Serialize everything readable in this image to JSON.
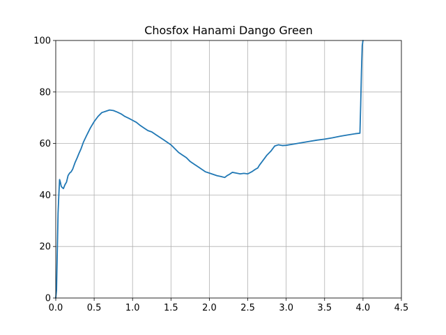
{
  "chart_data": {
    "type": "line",
    "title": "Chosfox Hanami Dango Green",
    "xlabel": "",
    "ylabel": "",
    "xlim": [
      0,
      4.5
    ],
    "ylim": [
      0,
      100
    ],
    "xticks": [
      0.0,
      0.5,
      1.0,
      1.5,
      2.0,
      2.5,
      3.0,
      3.5,
      4.0,
      4.5
    ],
    "xtick_labels": [
      "0.0",
      "0.5",
      "1.0",
      "1.5",
      "2.0",
      "2.5",
      "3.0",
      "3.5",
      "4.0",
      "4.5"
    ],
    "yticks": [
      0,
      20,
      40,
      60,
      80,
      100
    ],
    "ytick_labels": [
      "0",
      "20",
      "40",
      "60",
      "80",
      "100"
    ],
    "grid": true,
    "color": "#1f77b4",
    "series": [
      {
        "x": [
          0.0,
          0.01,
          0.02,
          0.03,
          0.04,
          0.05,
          0.06,
          0.07,
          0.08,
          0.1,
          0.12,
          0.14,
          0.16,
          0.18,
          0.2,
          0.22,
          0.25,
          0.28,
          0.3,
          0.33,
          0.36,
          0.4,
          0.45,
          0.5,
          0.55,
          0.6,
          0.65,
          0.7,
          0.75,
          0.8,
          0.85,
          0.9,
          0.95,
          1.0,
          1.05,
          1.1,
          1.15,
          1.2,
          1.25,
          1.3,
          1.35,
          1.4,
          1.45,
          1.5,
          1.55,
          1.6,
          1.65,
          1.7,
          1.75,
          1.8,
          1.85,
          1.9,
          1.95,
          2.0,
          2.05,
          2.1,
          2.15,
          2.2,
          2.23,
          2.26,
          2.3,
          2.35,
          2.4,
          2.45,
          2.5,
          2.55,
          2.6,
          2.63,
          2.65,
          2.7,
          2.75,
          2.8,
          2.85,
          2.9,
          2.95,
          3.0,
          3.1,
          3.2,
          3.3,
          3.4,
          3.5,
          3.6,
          3.7,
          3.8,
          3.9,
          3.96,
          3.97,
          3.98,
          3.99,
          4.0
        ],
        "y": [
          0,
          3,
          18,
          33,
          40,
          46,
          45,
          43.5,
          43,
          42.5,
          44,
          45,
          47.5,
          48.5,
          49,
          50,
          52.5,
          54.5,
          56,
          58,
          60.5,
          63,
          66,
          68.5,
          70.5,
          72,
          72.5,
          73,
          72.8,
          72.2,
          71.5,
          70.5,
          69.8,
          69,
          68.2,
          67,
          66,
          65,
          64.5,
          63.5,
          62.5,
          61.5,
          60.5,
          59.5,
          58,
          56.5,
          55.5,
          54.5,
          53,
          52,
          51,
          50,
          49,
          48.5,
          48,
          47.5,
          47.2,
          46.8,
          47.5,
          48,
          48.8,
          48.5,
          48.2,
          48.4,
          48.2,
          49,
          50,
          50.5,
          51.5,
          53.5,
          55.5,
          57,
          59,
          59.5,
          59.2,
          59.3,
          59.8,
          60.3,
          60.8,
          61.3,
          61.7,
          62.2,
          62.8,
          63.3,
          63.8,
          64,
          75,
          88,
          98,
          100
        ]
      }
    ]
  }
}
